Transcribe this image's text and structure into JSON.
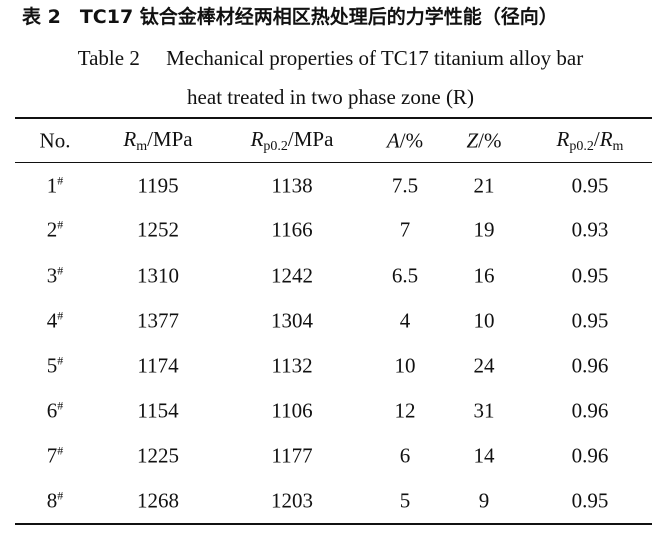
{
  "caption": {
    "chinese": "表 2　TC17 钛合金棒材经两相区热处理后的力学性能（径向）",
    "english_line1": "Table 2　 Mechanical properties of TC17 titanium alloy bar",
    "english_line2": "heat treated in two phase zone (R)"
  },
  "table": {
    "header": [
      {
        "text": "No."
      },
      {
        "symbol": "R",
        "subscript": "m",
        "unit": "/MPa"
      },
      {
        "symbol": "R",
        "subscript": "p0.2",
        "unit": "/MPa"
      },
      {
        "symbol": "A",
        "unit": "/%"
      },
      {
        "symbol": "Z",
        "unit": "/%"
      },
      {
        "symbol": "R",
        "subscript": "p0.2",
        "unit": "/",
        "symbol2": "R",
        "subscript2": "m"
      }
    ],
    "rows": [
      {
        "no": "1",
        "mark": "#",
        "values": [
          1195,
          1138,
          7.5,
          21,
          0.95
        ]
      },
      {
        "no": "2",
        "mark": "#",
        "values": [
          1252,
          1166,
          7,
          19,
          0.93
        ]
      },
      {
        "no": "3",
        "mark": "#",
        "values": [
          1310,
          1242,
          6.5,
          16,
          0.95
        ]
      },
      {
        "no": "4",
        "mark": "#",
        "values": [
          1377,
          1304,
          4,
          10,
          0.95
        ]
      },
      {
        "no": "5",
        "mark": "#",
        "values": [
          1174,
          1132,
          10,
          24,
          0.96
        ]
      },
      {
        "no": "6",
        "mark": "#",
        "values": [
          1154,
          1106,
          12,
          31,
          0.96
        ]
      },
      {
        "no": "7",
        "mark": "#",
        "values": [
          1225,
          1177,
          6,
          14,
          0.96
        ]
      },
      {
        "no": "8",
        "mark": "#",
        "values": [
          1268,
          1203,
          5,
          9,
          0.95
        ]
      }
    ]
  }
}
